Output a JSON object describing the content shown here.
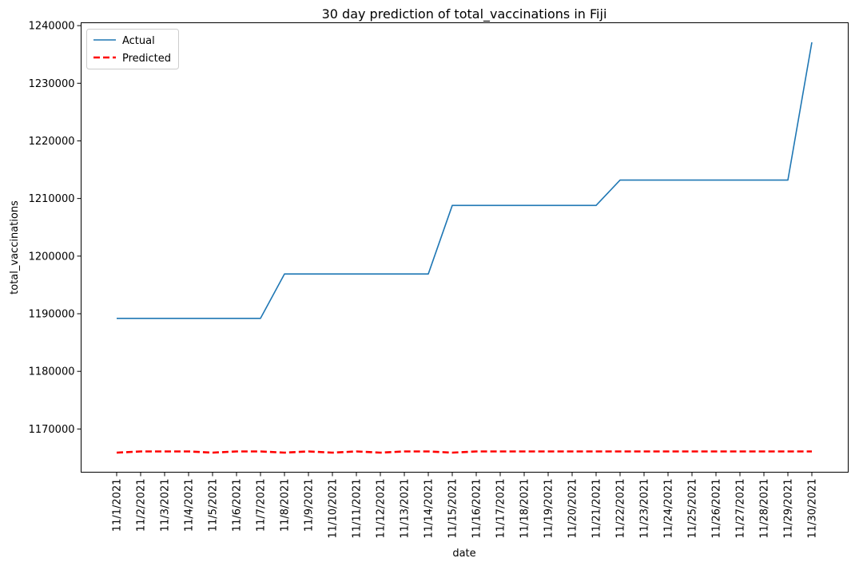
{
  "chart_data": {
    "type": "line",
    "title": "30 day prediction of total_vaccinations in Fiji",
    "xlabel": "date",
    "ylabel": "total_vaccinations",
    "categories": [
      "11/1/2021",
      "11/2/2021",
      "11/3/2021",
      "11/4/2021",
      "11/5/2021",
      "11/6/2021",
      "11/7/2021",
      "11/8/2021",
      "11/9/2021",
      "11/10/2021",
      "11/11/2021",
      "11/12/2021",
      "11/13/2021",
      "11/14/2021",
      "11/15/2021",
      "11/16/2021",
      "11/17/2021",
      "11/18/2021",
      "11/19/2021",
      "11/20/2021",
      "11/21/2021",
      "11/22/2021",
      "11/23/2021",
      "11/24/2021",
      "11/25/2021",
      "11/26/2021",
      "11/27/2021",
      "11/28/2021",
      "11/29/2021",
      "11/30/2021"
    ],
    "ylim": [
      1162500,
      1240500
    ],
    "yticks": [
      1170000,
      1180000,
      1190000,
      1200000,
      1210000,
      1220000,
      1230000,
      1240000
    ],
    "legend": "top-left",
    "grid": false,
    "series": [
      {
        "name": "Actual",
        "color": "#1f77b4",
        "style": "solid",
        "values": [
          1189200,
          1189200,
          1189200,
          1189200,
          1189200,
          1189200,
          1189200,
          1196900,
          1196900,
          1196900,
          1196900,
          1196900,
          1196900,
          1196900,
          1208800,
          1208800,
          1208800,
          1208800,
          1208800,
          1208800,
          1208800,
          1213200,
          1213200,
          1213200,
          1213200,
          1213200,
          1213200,
          1213200,
          1213200,
          1237100
        ]
      },
      {
        "name": "Predicted",
        "color": "#ff0000",
        "style": "dashed",
        "values": [
          1165900,
          1166100,
          1166100,
          1166100,
          1165900,
          1166100,
          1166100,
          1165900,
          1166100,
          1165900,
          1166100,
          1165900,
          1166100,
          1166100,
          1165900,
          1166100,
          1166100,
          1166100,
          1166100,
          1166100,
          1166100,
          1166100,
          1166100,
          1166100,
          1166100,
          1166100,
          1166100,
          1166100,
          1166100,
          1166100
        ]
      }
    ]
  }
}
